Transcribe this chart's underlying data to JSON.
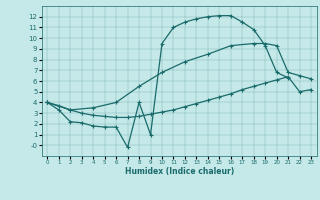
{
  "title": "",
  "xlabel": "Humidex (Indice chaleur)",
  "bg_color": "#c5e8e8",
  "line_color": "#1a6b6b",
  "xlim": [
    -0.5,
    23.5
  ],
  "ylim": [
    -1,
    13
  ],
  "xticks": [
    0,
    1,
    2,
    3,
    4,
    5,
    6,
    7,
    8,
    9,
    10,
    11,
    12,
    13,
    14,
    15,
    16,
    17,
    18,
    19,
    20,
    21,
    22,
    23
  ],
  "yticks": [
    0,
    1,
    2,
    3,
    4,
    5,
    6,
    7,
    8,
    9,
    10,
    11,
    12
  ],
  "ytick_labels": [
    "-0",
    "1",
    "2",
    "3",
    "4",
    "5",
    "6",
    "7",
    "8",
    "9",
    "10",
    "11",
    "12"
  ],
  "line1_x": [
    0,
    1,
    2,
    3,
    4,
    5,
    6,
    7,
    8,
    9,
    10,
    11,
    12,
    13,
    14,
    15,
    16,
    17,
    18,
    19,
    20,
    21
  ],
  "line1_y": [
    4.0,
    3.3,
    2.2,
    2.1,
    1.8,
    1.7,
    1.7,
    -0.2,
    4.0,
    1.0,
    9.5,
    11.0,
    11.5,
    11.8,
    12.0,
    12.1,
    12.1,
    11.5,
    10.8,
    9.3,
    6.8,
    6.3
  ],
  "line2_x": [
    0,
    1,
    2,
    3,
    4,
    5,
    6,
    7,
    8,
    9,
    10,
    11,
    12,
    13,
    14,
    15,
    16,
    17,
    18,
    19,
    20,
    21,
    22,
    23
  ],
  "line2_y": [
    4.0,
    3.7,
    3.3,
    3.0,
    2.8,
    2.7,
    2.6,
    2.6,
    2.7,
    2.9,
    3.1,
    3.3,
    3.6,
    3.9,
    4.2,
    4.5,
    4.8,
    5.2,
    5.5,
    5.8,
    6.1,
    6.4,
    5.0,
    5.2
  ],
  "line3_x": [
    0,
    2,
    4,
    6,
    8,
    10,
    12,
    14,
    16,
    18,
    19,
    20,
    21,
    22,
    23
  ],
  "line3_y": [
    4.0,
    3.3,
    3.5,
    4.0,
    5.5,
    6.8,
    7.8,
    8.5,
    9.3,
    9.5,
    9.5,
    9.3,
    6.8,
    6.5,
    6.2
  ]
}
